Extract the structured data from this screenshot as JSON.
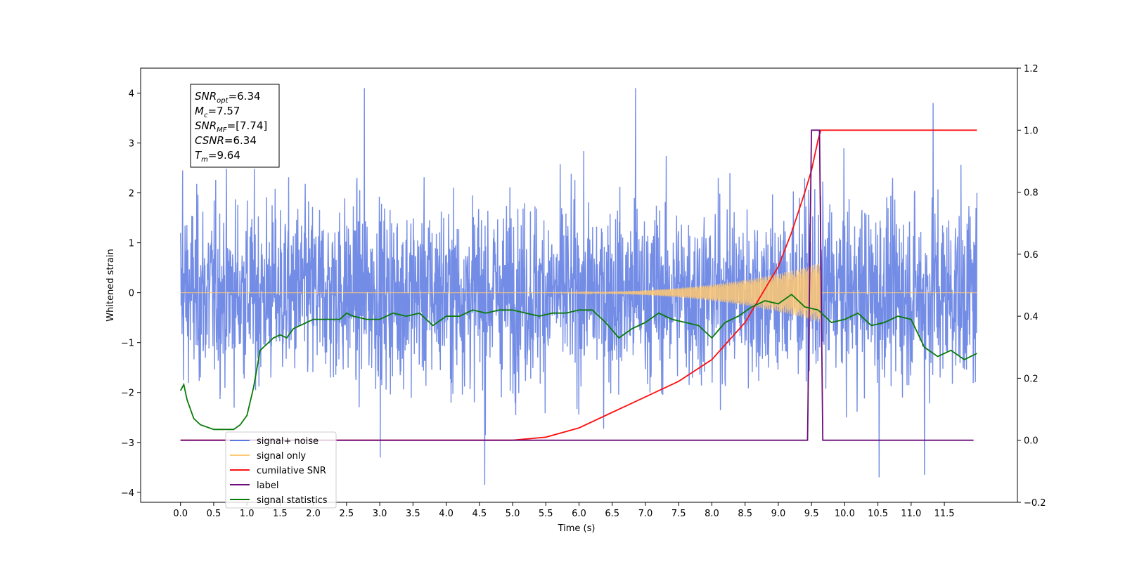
{
  "chart_data": {
    "type": "line",
    "xlabel": "Time (s)",
    "ylabel": "Whitened strain",
    "xlim": [
      -0.6,
      12.6
    ],
    "ylim": [
      -4.2,
      4.5
    ],
    "y2lim": [
      -0.2,
      1.2
    ],
    "x_ticks": [
      0.0,
      0.5,
      1.0,
      1.5,
      2.0,
      2.5,
      3.0,
      3.5,
      4.0,
      4.5,
      5.0,
      5.5,
      6.0,
      6.5,
      7.0,
      7.5,
      8.0,
      8.5,
      9.0,
      9.5,
      10.0,
      10.5,
      11.0,
      11.5
    ],
    "x_tick_labels": [
      "0.0",
      "0.5",
      "1.0",
      "1.5",
      "2.0",
      "2.5",
      "3.0",
      "3.5",
      "4.0",
      "4.5",
      "5.0",
      "5.5",
      "6.0",
      "6.5",
      "7.0",
      "7.5",
      "8.0",
      "8.5",
      "9.0",
      "9.5",
      "10.0",
      "10.5",
      "11.0",
      "11.5"
    ],
    "y_ticks": [
      -4,
      -3,
      -2,
      -1,
      0,
      1,
      2,
      3,
      4
    ],
    "y_tick_labels": [
      "−4",
      "−3",
      "−2",
      "−1",
      "0",
      "1",
      "2",
      "3",
      "4"
    ],
    "y2_ticks": [
      -0.2,
      0.0,
      0.2,
      0.4,
      0.6,
      0.8,
      1.0,
      1.2
    ],
    "y2_tick_labels": [
      "−0.2",
      "0.0",
      "0.2",
      "0.4",
      "0.6",
      "0.8",
      "1.0",
      "1.2"
    ],
    "grid": false,
    "legend_position": "lower-left",
    "annotation": {
      "lines": [
        {
          "main": "SNR",
          "sub": "opt",
          "rest": "=6.34"
        },
        {
          "main": "M",
          "sub": "c",
          "rest": "=7.57"
        },
        {
          "main": "SNR",
          "sub": "MF",
          "rest": "=[7.74]"
        },
        {
          "main": "CSNR",
          "sub": "",
          "rest": "=6.34"
        },
        {
          "main": "T",
          "sub": "m",
          "rest": "=9.64"
        }
      ]
    },
    "series": [
      {
        "name": "signal+ noise",
        "color": "#5a78e0",
        "axis": "left",
        "style": "noise",
        "x_range": [
          0.0,
          11.99
        ],
        "mean": 0.0,
        "spread": 0.9,
        "peak_values": [
          {
            "x": 0.03,
            "y": 2.45
          },
          {
            "x": 2.77,
            "y": 4.1
          },
          {
            "x": 3.01,
            "y": -3.3
          },
          {
            "x": 4.58,
            "y": -3.85
          },
          {
            "x": 6.85,
            "y": 4.1
          },
          {
            "x": 10.52,
            "y": -3.7
          },
          {
            "x": 11.2,
            "y": -3.65
          },
          {
            "x": 11.33,
            "y": 3.8
          },
          {
            "x": 11.99,
            "y": 2.0
          }
        ]
      },
      {
        "name": "signal only",
        "color": "#ffc873",
        "axis": "left",
        "style": "chirp",
        "x_range": [
          0.0,
          11.99
        ],
        "amplitude_start_x": 5.0,
        "peak_x": 9.64,
        "peak_amplitude": 0.6
      },
      {
        "name": "cumilative SNR",
        "color": "#ff1010",
        "axis": "right",
        "style": "line",
        "points": [
          [
            0.0,
            0.0
          ],
          [
            5.0,
            0.0
          ],
          [
            5.5,
            0.01
          ],
          [
            6.0,
            0.04
          ],
          [
            6.5,
            0.09
          ],
          [
            7.0,
            0.14
          ],
          [
            7.5,
            0.19
          ],
          [
            8.0,
            0.26
          ],
          [
            8.5,
            0.38
          ],
          [
            9.0,
            0.56
          ],
          [
            9.2,
            0.67
          ],
          [
            9.4,
            0.8
          ],
          [
            9.5,
            0.87
          ],
          [
            9.6,
            0.97
          ],
          [
            9.64,
            1.0
          ],
          [
            11.99,
            1.0
          ]
        ]
      },
      {
        "name": "label",
        "color": "#6a0d7a",
        "axis": "right",
        "style": "line",
        "points": [
          [
            0.0,
            0.0
          ],
          [
            9.44,
            0.0
          ],
          [
            9.5,
            1.0
          ],
          [
            9.62,
            1.0
          ],
          [
            9.67,
            0.0
          ],
          [
            11.94,
            0.0
          ]
        ]
      },
      {
        "name": "signal statistics",
        "color": "#0a7a0a",
        "axis": "right",
        "style": "line",
        "points": [
          [
            0.0,
            0.16
          ],
          [
            0.05,
            0.18
          ],
          [
            0.1,
            0.13
          ],
          [
            0.2,
            0.07
          ],
          [
            0.3,
            0.05
          ],
          [
            0.5,
            0.035
          ],
          [
            0.8,
            0.035
          ],
          [
            0.9,
            0.05
          ],
          [
            1.0,
            0.08
          ],
          [
            1.1,
            0.17
          ],
          [
            1.2,
            0.29
          ],
          [
            1.3,
            0.31
          ],
          [
            1.4,
            0.33
          ],
          [
            1.5,
            0.34
          ],
          [
            1.6,
            0.33
          ],
          [
            1.7,
            0.36
          ],
          [
            1.8,
            0.37
          ],
          [
            1.9,
            0.38
          ],
          [
            2.0,
            0.39
          ],
          [
            2.2,
            0.39
          ],
          [
            2.4,
            0.39
          ],
          [
            2.5,
            0.41
          ],
          [
            2.6,
            0.4
          ],
          [
            2.8,
            0.39
          ],
          [
            3.0,
            0.39
          ],
          [
            3.2,
            0.41
          ],
          [
            3.4,
            0.4
          ],
          [
            3.6,
            0.41
          ],
          [
            3.8,
            0.37
          ],
          [
            4.0,
            0.4
          ],
          [
            4.2,
            0.4
          ],
          [
            4.4,
            0.42
          ],
          [
            4.6,
            0.41
          ],
          [
            4.8,
            0.42
          ],
          [
            5.0,
            0.42
          ],
          [
            5.2,
            0.41
          ],
          [
            5.4,
            0.4
          ],
          [
            5.6,
            0.41
          ],
          [
            5.8,
            0.41
          ],
          [
            6.0,
            0.42
          ],
          [
            6.2,
            0.42
          ],
          [
            6.4,
            0.38
          ],
          [
            6.6,
            0.33
          ],
          [
            6.8,
            0.36
          ],
          [
            7.0,
            0.38
          ],
          [
            7.2,
            0.41
          ],
          [
            7.4,
            0.39
          ],
          [
            7.6,
            0.38
          ],
          [
            7.8,
            0.37
          ],
          [
            8.0,
            0.33
          ],
          [
            8.2,
            0.38
          ],
          [
            8.4,
            0.4
          ],
          [
            8.6,
            0.43
          ],
          [
            8.8,
            0.45
          ],
          [
            9.0,
            0.44
          ],
          [
            9.2,
            0.47
          ],
          [
            9.4,
            0.43
          ],
          [
            9.6,
            0.42
          ],
          [
            9.8,
            0.38
          ],
          [
            10.0,
            0.39
          ],
          [
            10.2,
            0.41
          ],
          [
            10.4,
            0.37
          ],
          [
            10.6,
            0.38
          ],
          [
            10.8,
            0.4
          ],
          [
            11.0,
            0.39
          ],
          [
            11.2,
            0.3
          ],
          [
            11.4,
            0.27
          ],
          [
            11.6,
            0.29
          ],
          [
            11.8,
            0.26
          ],
          [
            11.99,
            0.28
          ]
        ]
      }
    ]
  }
}
